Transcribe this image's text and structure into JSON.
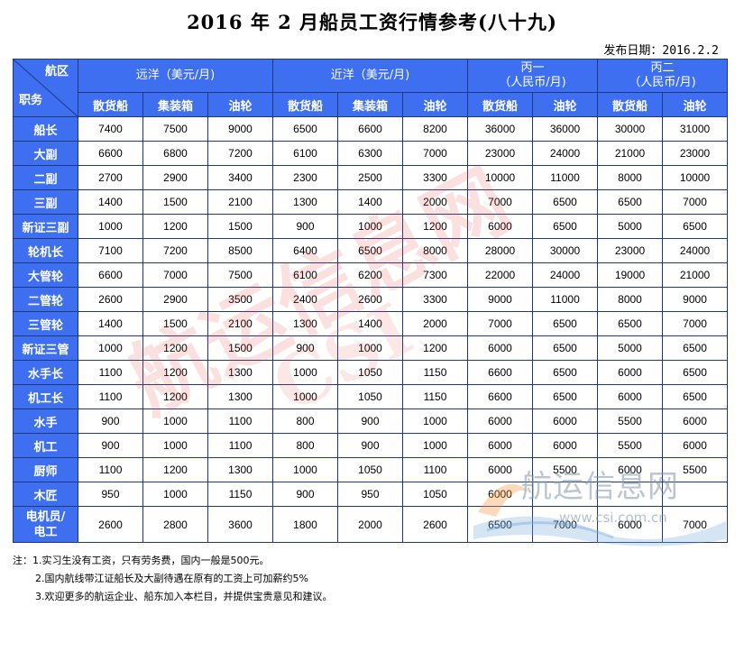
{
  "title": "2016 年 2 月船员工资行情参考(八十九)",
  "publish": {
    "label": "发布日期：",
    "date": "2016.2.2"
  },
  "corner": {
    "top": "航区",
    "bottom": "职务"
  },
  "groups": [
    {
      "label": "远洋（美元/月)",
      "line2": ""
    },
    {
      "label": "近洋（美元/月)",
      "line2": ""
    },
    {
      "label": "丙一",
      "line2": "（人民币/月)"
    },
    {
      "label": "丙二",
      "line2": "（人民币/月)"
    }
  ],
  "subheaders": [
    "散货船",
    "集装箱",
    "油轮",
    "散货船",
    "集装箱",
    "油轮",
    "散货船",
    "油轮",
    "散货船",
    "油轮"
  ],
  "rows": [
    {
      "role": "船长",
      "values": [
        "7400",
        "7500",
        "9000",
        "6500",
        "6600",
        "8200",
        "36000",
        "36000",
        "30000",
        "31000"
      ]
    },
    {
      "role": "大副",
      "values": [
        "6600",
        "6800",
        "7200",
        "6100",
        "6300",
        "7000",
        "23000",
        "24000",
        "21000",
        "23000"
      ]
    },
    {
      "role": "二副",
      "values": [
        "2700",
        "2900",
        "3400",
        "2300",
        "2500",
        "3300",
        "10000",
        "11000",
        "8000",
        "10000"
      ]
    },
    {
      "role": "三副",
      "values": [
        "1400",
        "1500",
        "2100",
        "1300",
        "1400",
        "2000",
        "7000",
        "6500",
        "6500",
        "7000"
      ]
    },
    {
      "role": "新证三副",
      "values": [
        "1000",
        "1200",
        "1500",
        "900",
        "1000",
        "1200",
        "6000",
        "6500",
        "5000",
        "6500"
      ]
    },
    {
      "role": "轮机长",
      "values": [
        "7100",
        "7200",
        "8500",
        "6400",
        "6500",
        "8000",
        "28000",
        "30000",
        "23000",
        "24000"
      ]
    },
    {
      "role": "大管轮",
      "values": [
        "6600",
        "7000",
        "7500",
        "6100",
        "6200",
        "7300",
        "22000",
        "24000",
        "19000",
        "21000"
      ]
    },
    {
      "role": "二管轮",
      "values": [
        "2600",
        "2900",
        "3500",
        "2400",
        "2600",
        "3300",
        "9000",
        "11000",
        "8000",
        "9000"
      ]
    },
    {
      "role": "三管轮",
      "values": [
        "1400",
        "1500",
        "2100",
        "1300",
        "1400",
        "2000",
        "7000",
        "6500",
        "6500",
        "7000"
      ]
    },
    {
      "role": "新证三管",
      "values": [
        "1000",
        "1200",
        "1500",
        "900",
        "1000",
        "1200",
        "6000",
        "6500",
        "5000",
        "6500"
      ]
    },
    {
      "role": "水手长",
      "values": [
        "1100",
        "1200",
        "1300",
        "1000",
        "1050",
        "1150",
        "6600",
        "6500",
        "6000",
        "6500"
      ]
    },
    {
      "role": "机工长",
      "values": [
        "1100",
        "1200",
        "1300",
        "1000",
        "1050",
        "1150",
        "6600",
        "6500",
        "6000",
        "6500"
      ]
    },
    {
      "role": "水手",
      "values": [
        "900",
        "1000",
        "1100",
        "800",
        "900",
        "1000",
        "6000",
        "6000",
        "5500",
        "6000"
      ]
    },
    {
      "role": "机工",
      "values": [
        "900",
        "1000",
        "1100",
        "800",
        "900",
        "1000",
        "6000",
        "6000",
        "5500",
        "6000"
      ]
    },
    {
      "role": "厨师",
      "values": [
        "1100",
        "1200",
        "1300",
        "1000",
        "1050",
        "1100",
        "6000",
        "5500",
        "6000",
        "5500"
      ]
    },
    {
      "role": "木匠",
      "values": [
        "950",
        "1000",
        "1150",
        "900",
        "950",
        "1050",
        "6000",
        "",
        "",
        ""
      ]
    },
    {
      "role": "电机员/电工",
      "values": [
        "2600",
        "2800",
        "3600",
        "1800",
        "2000",
        "2600",
        "6500",
        "7000",
        "6000",
        "7000"
      ]
    }
  ],
  "notes": [
    "注：1.实习生没有工资，只有劳务费，国内一般是500元。",
    "2.国内航线带江证船长及大副待遇在原有的工资上可加薪约5%",
    "3.欢迎更多的航运企业、船东加入本栏目，并提供宝贵意见和建议。"
  ],
  "watermark": {
    "red": "航运信息网",
    "red2": "CSI",
    "logo": "航运信息网",
    "url": "www.csi.com.cn"
  },
  "colors": {
    "header_bg": "#3d6ff0",
    "border": "#1f3a7a"
  }
}
